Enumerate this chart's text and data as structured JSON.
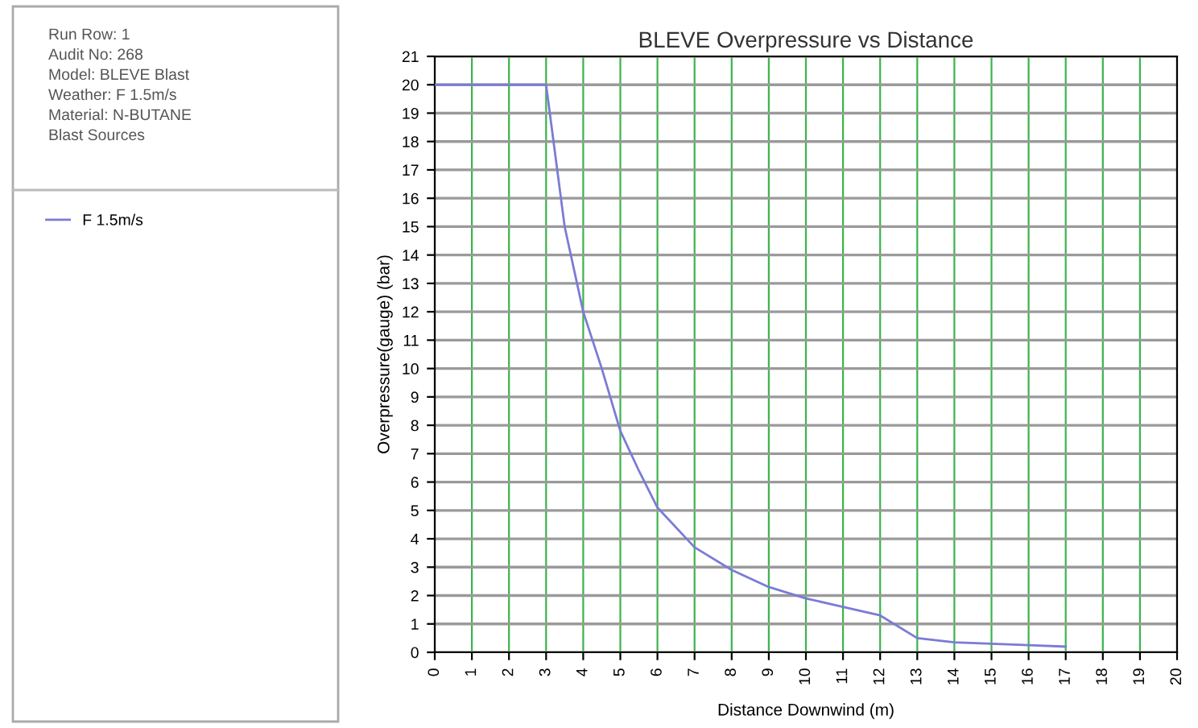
{
  "chart_data": {
    "type": "line",
    "title": "BLEVE Overpressure vs Distance",
    "xlabel": "Distance Downwind (m)",
    "ylabel": "Overpressure(gauge) (bar)",
    "annotations": [
      "Run Row: 1",
      "Audit No: 268",
      "Model: BLEVE Blast",
      "Weather: F 1.5m/s",
      "Material: N-BUTANE",
      "Blast Sources"
    ],
    "series": [
      {
        "name": "F 1.5m/s",
        "color": "#7b7bd6",
        "x": [
          0,
          3,
          3.2,
          3.5,
          4,
          4.5,
          5,
          5.5,
          6,
          7,
          8,
          9,
          10,
          11,
          12,
          13,
          14,
          15,
          16,
          17
        ],
        "values": [
          20,
          20,
          18,
          15,
          12,
          10,
          7.8,
          6.4,
          5.1,
          3.7,
          2.9,
          2.3,
          1.9,
          1.6,
          1.3,
          0.5,
          0.35,
          0.3,
          0.25,
          0.2
        ]
      }
    ],
    "xlim": [
      0,
      20
    ],
    "xticks": [
      0,
      1,
      2,
      3,
      4,
      5,
      6,
      7,
      8,
      9,
      10,
      11,
      12,
      13,
      14,
      15,
      16,
      17,
      18,
      19,
      20
    ],
    "ylim": [
      0,
      21
    ],
    "yticks": [
      0,
      1,
      2,
      3,
      4,
      5,
      6,
      7,
      8,
      9,
      10,
      11,
      12,
      13,
      14,
      15,
      16,
      17,
      18,
      19,
      20,
      21
    ],
    "grid": true,
    "legend": "left",
    "marker": "none",
    "line_style": "solid"
  }
}
